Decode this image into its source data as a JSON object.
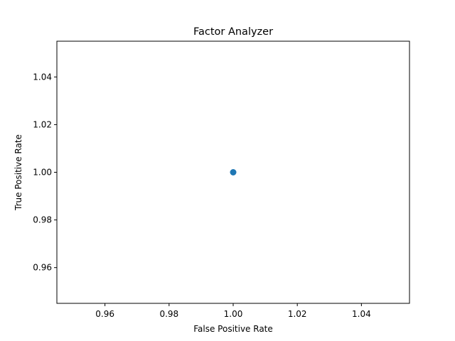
{
  "chart_data": {
    "type": "scatter",
    "title": "Factor Analyzer",
    "xlabel": "False Positive Rate",
    "ylabel": "True Positive Rate",
    "xlim": [
      0.945,
      1.055
    ],
    "ylim": [
      0.945,
      1.055
    ],
    "xticks": [
      "0.96",
      "0.98",
      "1.00",
      "1.02",
      "1.04"
    ],
    "yticks": [
      "0.96",
      "0.98",
      "1.00",
      "1.02",
      "1.04"
    ],
    "x": [
      1.0
    ],
    "y": [
      1.0
    ],
    "color": "#1f77b4",
    "grid": false,
    "legend": "none"
  }
}
